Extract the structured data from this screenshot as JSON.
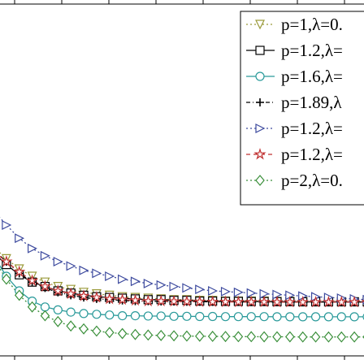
{
  "chart_data": {
    "type": "line",
    "title": "",
    "xlabel": "",
    "ylabel": "",
    "grid": false,
    "legend_position": "top-right",
    "x": [
      1,
      2,
      3,
      4,
      5,
      6,
      7,
      8,
      9,
      10,
      11,
      12,
      13,
      14,
      15,
      16,
      17,
      18,
      19,
      20,
      21,
      22,
      23,
      24,
      25,
      26,
      27,
      28,
      29,
      30
    ],
    "xlim": [
      1,
      30
    ],
    "ylim": [
      0,
      1
    ],
    "series": [
      {
        "name": "p=1,λ=0.",
        "color": "#9a9a3a",
        "dash": "2,3",
        "marker": "tri-down",
        "values": [
          0.7,
          0.62,
          0.55,
          0.5,
          0.46,
          0.43,
          0.41,
          0.39,
          0.38,
          0.37,
          0.36,
          0.355,
          0.35,
          0.345,
          0.34,
          0.34,
          0.335,
          0.335,
          0.33,
          0.33,
          0.33,
          0.33,
          0.328,
          0.328,
          0.327,
          0.327,
          0.326,
          0.326,
          0.326,
          0.326
        ]
      },
      {
        "name": "p=1.2,λ=",
        "color": "#000000",
        "dash": "",
        "marker": "square",
        "values": [
          0.66,
          0.58,
          0.51,
          0.46,
          0.43,
          0.4,
          0.385,
          0.37,
          0.36,
          0.355,
          0.35,
          0.345,
          0.34,
          0.34,
          0.335,
          0.335,
          0.33,
          0.33,
          0.328,
          0.328,
          0.327,
          0.327,
          0.326,
          0.326,
          0.325,
          0.325,
          0.325,
          0.325,
          0.325,
          0.325
        ]
      },
      {
        "name": "p=1.6,λ=",
        "color": "#2a9a9a",
        "dash": "",
        "marker": "circle",
        "values": [
          0.64,
          0.5,
          0.4,
          0.33,
          0.29,
          0.27,
          0.255,
          0.245,
          0.24,
          0.235,
          0.23,
          0.23,
          0.228,
          0.228,
          0.226,
          0.226,
          0.225,
          0.225,
          0.224,
          0.224,
          0.224,
          0.224,
          0.223,
          0.223,
          0.223,
          0.223,
          0.223,
          0.223,
          0.223,
          0.223
        ]
      },
      {
        "name": "p=1.89,λ",
        "color": "#000000",
        "dash": "5,3,1,3",
        "marker": "plus",
        "values": [
          0.68,
          0.6,
          0.52,
          0.46,
          0.42,
          0.39,
          0.37,
          0.355,
          0.345,
          0.34,
          0.335,
          0.33,
          0.33,
          0.328,
          0.327,
          0.326,
          0.326,
          0.325,
          0.325,
          0.325,
          0.324,
          0.324,
          0.324,
          0.324,
          0.324,
          0.324,
          0.324,
          0.324,
          0.324,
          0.324
        ]
      },
      {
        "name": "p=1.2,λ=",
        "color": "#3d4a9e",
        "dash": "2,3",
        "marker": "tri-right",
        "values": [
          0.95,
          0.85,
          0.76,
          0.69,
          0.64,
          0.6,
          0.57,
          0.54,
          0.52,
          0.5,
          0.48,
          0.465,
          0.45,
          0.44,
          0.43,
          0.42,
          0.41,
          0.4,
          0.395,
          0.39,
          0.385,
          0.38,
          0.375,
          0.37,
          0.365,
          0.36,
          0.355,
          0.35,
          0.345,
          0.34
        ]
      },
      {
        "name": "p=1.2,λ=",
        "color": "#c03030",
        "dash": "5,4",
        "marker": "star",
        "values": [
          0.67,
          0.6,
          0.53,
          0.47,
          0.43,
          0.4,
          0.38,
          0.365,
          0.355,
          0.345,
          0.34,
          0.335,
          0.33,
          0.33,
          0.328,
          0.327,
          0.326,
          0.325,
          0.325,
          0.324,
          0.324,
          0.324,
          0.323,
          0.323,
          0.323,
          0.323,
          0.323,
          0.323,
          0.323,
          0.323
        ]
      },
      {
        "name": "p=2,λ=0.",
        "color": "#3a8f3a",
        "dash": "2,3",
        "marker": "diamond",
        "values": [
          0.62,
          0.48,
          0.37,
          0.29,
          0.23,
          0.19,
          0.16,
          0.14,
          0.125,
          0.115,
          0.108,
          0.102,
          0.098,
          0.095,
          0.093,
          0.091,
          0.09,
          0.089,
          0.088,
          0.087,
          0.087,
          0.086,
          0.086,
          0.086,
          0.085,
          0.085,
          0.085,
          0.085,
          0.085,
          0.085
        ]
      }
    ]
  }
}
